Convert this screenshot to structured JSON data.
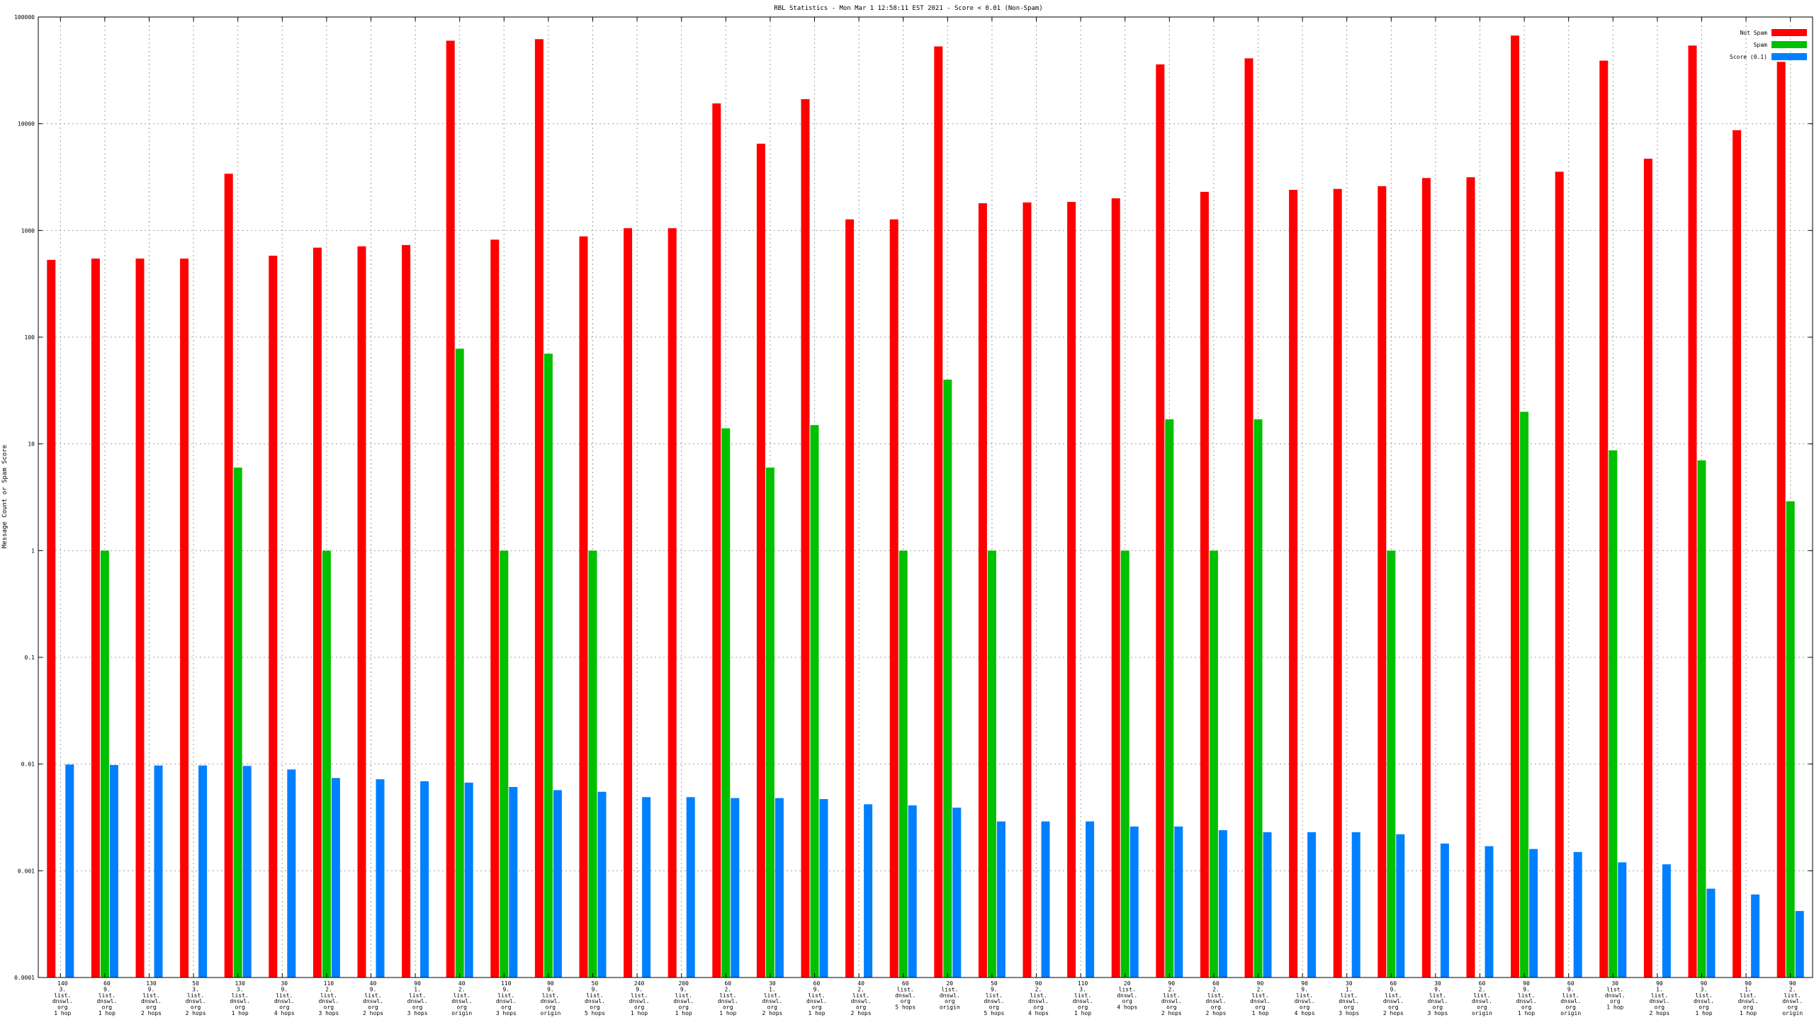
{
  "chart_data": {
    "type": "bar",
    "title": "RBL Statistics - Mon Mar  1 12:58:11 EST 2021 - Score < 0.01 (Non-Spam)",
    "xlabel": "",
    "ylabel": "Message Count or Spam Score",
    "yscale": "log",
    "ylim": [
      0.0001,
      100000
    ],
    "yticks": [
      "0.0001",
      "0.001",
      "0.01",
      "0.1",
      "1",
      "10",
      "100",
      "1000",
      "10000",
      "100000"
    ],
    "legend_position": "top-right",
    "grid": true,
    "categories": [
      [
        "140",
        "3.",
        "list.",
        "dnswl.",
        "org",
        "1 hop"
      ],
      [
        "60",
        "9.",
        "list.",
        "dnswl.",
        "org",
        "1 hop"
      ],
      [
        "130",
        "9.",
        "list.",
        "dnswl.",
        "org",
        "2 hops"
      ],
      [
        "50",
        "3.",
        "list.",
        "dnswl.",
        "org",
        "2 hops"
      ],
      [
        "130",
        "3.",
        "list.",
        "dnswl.",
        "org",
        "1 hop"
      ],
      [
        "30",
        "9.",
        "list.",
        "dnswl.",
        "org",
        "4 hops"
      ],
      [
        "110",
        "2.",
        "list.",
        "dnswl.",
        "org",
        "3 hops"
      ],
      [
        "40",
        "9.",
        "list.",
        "dnswl.",
        "org",
        "2 hops"
      ],
      [
        "90",
        "1.",
        "list.",
        "dnswl.",
        "org",
        "3 hops"
      ],
      [
        "40",
        "2.",
        "list.",
        "dnswl.",
        "org",
        "origin"
      ],
      [
        "110",
        "9.",
        "list.",
        "dnswl.",
        "org",
        "3 hops"
      ],
      [
        "90",
        "9.",
        "list.",
        "dnswl.",
        "org",
        "origin"
      ],
      [
        "50",
        "9.",
        "list.",
        "dnswl.",
        "org",
        "5 hops"
      ],
      [
        "240",
        "9.",
        "list.",
        "dnswl.",
        "org",
        "1 hop"
      ],
      [
        "200",
        "9.",
        "list.",
        "dnswl.",
        "org",
        "1 hop"
      ],
      [
        "60",
        "2.",
        "list.",
        "dnswl.",
        "org",
        "1 hop"
      ],
      [
        "30",
        "1.",
        "list.",
        "dnswl.",
        "org",
        "2 hops"
      ],
      [
        "60",
        "9.",
        "list.",
        "dnswl.",
        "org",
        "1 hop"
      ],
      [
        "40",
        "2.",
        "list.",
        "dnswl.",
        "org",
        "2 hops"
      ],
      [
        "60",
        "list.",
        "dnswl.",
        "org",
        "5 hops"
      ],
      [
        "20",
        "list.",
        "dnswl.",
        "org",
        "origin"
      ],
      [
        "50",
        "9.",
        "list.",
        "dnswl.",
        "org",
        "5 hops"
      ],
      [
        "90",
        "2.",
        "list.",
        "dnswl.",
        "org",
        "4 hops"
      ],
      [
        "110",
        "3.",
        "list.",
        "dnswl.",
        "org",
        "1 hop"
      ],
      [
        "20",
        "list.",
        "dnswl.",
        "org",
        "4 hops"
      ],
      [
        "90",
        "2.",
        "list.",
        "dnswl.",
        "org",
        "2 hops"
      ],
      [
        "60",
        "2.",
        "list.",
        "dnswl.",
        "org",
        "2 hops"
      ],
      [
        "90",
        "2.",
        "list.",
        "dnswl.",
        "org",
        "1 hop"
      ],
      [
        "90",
        "9.",
        "list.",
        "dnswl.",
        "org",
        "4 hops"
      ],
      [
        "30",
        "1.",
        "list.",
        "dnswl.",
        "org",
        "3 hops"
      ],
      [
        "60",
        "9.",
        "list.",
        "dnswl.",
        "org",
        "2 hops"
      ],
      [
        "30",
        "9.",
        "list.",
        "dnswl.",
        "org",
        "3 hops"
      ],
      [
        "60",
        "2.",
        "list.",
        "dnswl.",
        "org",
        "origin"
      ],
      [
        "90",
        "9.",
        "list.",
        "dnswl.",
        "org",
        "1 hop"
      ],
      [
        "60",
        "9.",
        "list.",
        "dnswl.",
        "org",
        "origin"
      ],
      [
        "30",
        "list.",
        "dnswl.",
        "org",
        "1 hop"
      ],
      [
        "90",
        "1.",
        "list.",
        "dnswl.",
        "org",
        "2 hops"
      ],
      [
        "90",
        "3.",
        "list.",
        "dnswl.",
        "org",
        "1 hop"
      ],
      [
        "90",
        "1.",
        "list.",
        "dnswl.",
        "org",
        "1 hop"
      ],
      [
        "90",
        "2.",
        "list.",
        "dnswl.",
        "org",
        "origin"
      ]
    ],
    "series": [
      {
        "name": "Not Spam",
        "color": "#ff0000",
        "values": [
          530,
          545,
          545,
          545,
          3400,
          580,
          690,
          710,
          730,
          60000,
          820,
          62000,
          880,
          1050,
          1050,
          15500,
          6500,
          17000,
          1270,
          1270,
          53000,
          1800,
          1830,
          1850,
          2000,
          36000,
          2300,
          41000,
          2400,
          2450,
          2600,
          3100,
          3150,
          67000,
          3550,
          39000,
          4700,
          54000,
          8700,
          38000
        ]
      },
      {
        "name": "Spam",
        "color": "#00c000",
        "values": [
          null,
          1,
          null,
          null,
          6,
          null,
          1,
          null,
          null,
          78,
          1,
          70,
          1,
          null,
          null,
          14,
          6,
          15,
          null,
          1,
          40,
          1,
          null,
          null,
          1,
          17,
          1,
          17,
          null,
          null,
          1,
          null,
          null,
          20,
          null,
          8.7,
          null,
          7,
          null,
          2.9
        ]
      },
      {
        "name": "Score (0.1)",
        "color": "#0080ff",
        "values": [
          0.0099,
          0.0098,
          0.0097,
          0.0097,
          0.0096,
          0.0089,
          0.0074,
          0.0072,
          0.0069,
          0.0067,
          0.0061,
          0.0057,
          0.0055,
          0.0049,
          0.0049,
          0.0048,
          0.0048,
          0.0047,
          0.0042,
          0.0041,
          0.0039,
          0.0029,
          0.0029,
          0.0029,
          0.0026,
          0.0026,
          0.0024,
          0.0023,
          0.0023,
          0.0023,
          0.0022,
          0.0018,
          0.0017,
          0.0016,
          0.0015,
          0.0012,
          0.00115,
          0.00068,
          0.0006,
          0.00042
        ]
      }
    ]
  }
}
